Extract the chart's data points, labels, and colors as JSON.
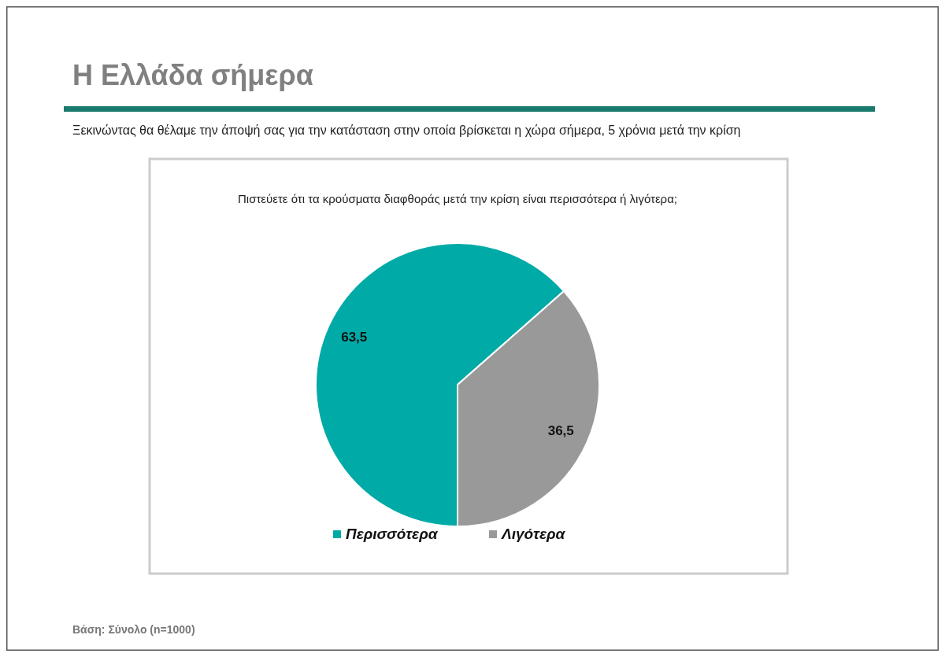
{
  "chart_data": {
    "type": "pie",
    "title": "Η Ελλάδα σήμερα",
    "subtitle": "Ξεκινώντας θα θέλαμε την άποψή σας για την κατάσταση στην οποία βρίσκεται η χώρα σήμερα, 5 χρόνια μετά την κρίση",
    "xlabel": "Πιστεύετε ότι τα κρούσματα διαφθοράς μετά την κρίση είναι περισσότερα ή λιγότερα;",
    "categories": [
      "Περισσότερα",
      "Λιγότερα"
    ],
    "values": [
      63.5,
      36.5
    ],
    "colors": [
      "#00aaa6",
      "#999999"
    ],
    "value_labels": [
      "63,5",
      "36,5"
    ],
    "legend": "bottom",
    "annotations": [
      "Βάση: Σύνολο (n=1000)"
    ]
  }
}
